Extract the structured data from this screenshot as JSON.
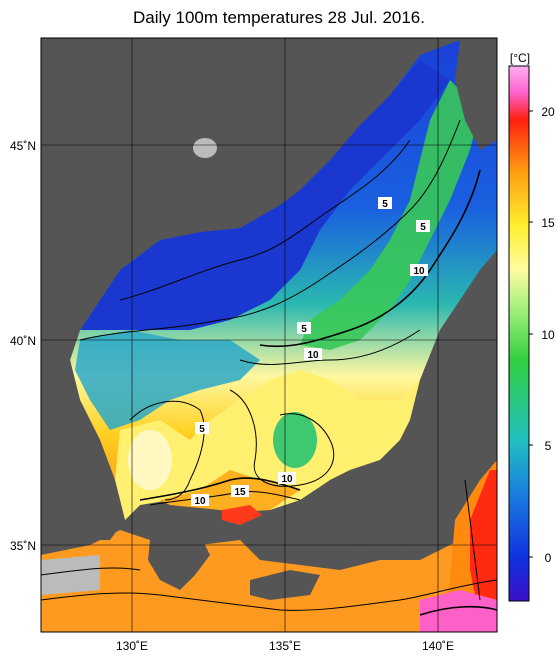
{
  "title": "Daily 100m temperatures 28 Jul. 2016.",
  "unit_label": "[°C]",
  "lat_labels": [
    "45˚N",
    "40˚N",
    "35˚N"
  ],
  "lon_labels": [
    "130˚E",
    "135˚E",
    "140˚E"
  ],
  "colorbar_ticks": [
    "20",
    "15",
    "10",
    "5",
    "0"
  ],
  "contour_labels": [
    "5",
    "5",
    "10",
    "5",
    "10",
    "5",
    "10",
    "10",
    "15"
  ],
  "colors": {
    "land": "#555555",
    "cold": "#1a3fd0",
    "mid": "#33c95a",
    "warm": "#ffe033",
    "hot": "#ff3b1a",
    "colorbar_bottom": "#3a10c8",
    "colorbar_top": "#ffa0f0"
  }
}
